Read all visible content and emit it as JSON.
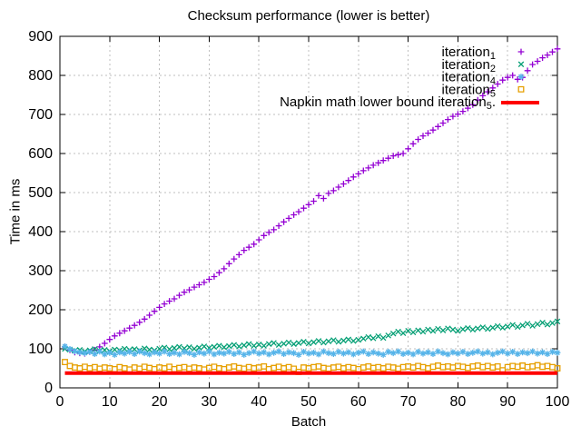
{
  "chart_data": {
    "type": "scatter",
    "title": "Checksum performance (lower is better)",
    "xlabel": "Batch",
    "ylabel": "Time in ms",
    "xlim": [
      0,
      100
    ],
    "ylim": [
      0,
      900
    ],
    "xticks": [
      0,
      10,
      20,
      30,
      40,
      50,
      60,
      70,
      80,
      90,
      100
    ],
    "yticks": [
      0,
      100,
      200,
      300,
      400,
      500,
      600,
      700,
      800,
      900
    ],
    "grid": true,
    "grid_color": "#bfbfbf",
    "legend_position": "top-right-inside",
    "series": [
      {
        "name": "iteration",
        "name_sub": "1",
        "name_suffix": "",
        "marker": "plus",
        "color": "#9400d3",
        "x_start": 1,
        "x_step": 1,
        "y": [
          105,
          97,
          91,
          89,
          88,
          92,
          97,
          105,
          114,
          124,
          133,
          140,
          146,
          153,
          160,
          168,
          176,
          186,
          196,
          206,
          215,
          222,
          228,
          237,
          245,
          251,
          258,
          264,
          270,
          278,
          285,
          295,
          305,
          318,
          330,
          341,
          352,
          360,
          368,
          379,
          390,
          398,
          405,
          415,
          425,
          434,
          443,
          451,
          460,
          469,
          478,
          492,
          485,
          498,
          505,
          514,
          522,
          531,
          540,
          548,
          556,
          563,
          570,
          576,
          582,
          588,
          594,
          597,
          600,
          612,
          625,
          636,
          645,
          652,
          660,
          669,
          678,
          687,
          695,
          701,
          708,
          716,
          725,
          737,
          748,
          758,
          768,
          778,
          788,
          795,
          800,
          790,
          795,
          812,
          828,
          836,
          845,
          852,
          860,
          868
        ]
      },
      {
        "name": "iteration",
        "name_sub": "2",
        "name_suffix": "",
        "marker": "cross",
        "color": "#009e73",
        "x_start": 1,
        "x_step": 1,
        "y": [
          100,
          98,
          95,
          97,
          93,
          96,
          99,
          95,
          97,
          94,
          98,
          96,
          100,
          97,
          99,
          96,
          101,
          98,
          96,
          100,
          103,
          99,
          102,
          105,
          101,
          104,
          100,
          103,
          106,
          102,
          105,
          108,
          104,
          107,
          110,
          106,
          109,
          112,
          108,
          111,
          108,
          112,
          115,
          110,
          113,
          116,
          112,
          115,
          118,
          114,
          117,
          120,
          116,
          119,
          122,
          118,
          121,
          124,
          120,
          123,
          126,
          130,
          127,
          132,
          128,
          134,
          139,
          144,
          140,
          146,
          142,
          147,
          144,
          149,
          146,
          151,
          147,
          152,
          149,
          146,
          150,
          153,
          149,
          152,
          155,
          151,
          154,
          158,
          154,
          157,
          161,
          156,
          160,
          164,
          159,
          163,
          167,
          162,
          166,
          170
        ]
      },
      {
        "name": "iteration",
        "name_sub": "4",
        "name_suffix": "",
        "marker": "star",
        "color": "#56b4e9",
        "x_start": 1,
        "x_step": 1,
        "y": [
          106,
          99,
          94,
          91,
          89,
          92,
          87,
          93,
          86,
          90,
          85,
          91,
          88,
          92,
          87,
          93,
          89,
          86,
          91,
          88,
          93,
          87,
          90,
          86,
          92,
          89,
          85,
          91,
          88,
          93,
          86,
          90,
          88,
          92,
          87,
          91,
          85,
          89,
          93,
          88,
          91,
          86,
          90,
          93,
          87,
          91,
          89,
          85,
          92,
          88,
          90,
          86,
          93,
          89,
          87,
          92,
          88,
          91,
          86,
          90,
          93,
          87,
          91,
          88,
          85,
          92,
          89,
          93,
          87,
          90,
          86,
          92,
          88,
          91,
          87,
          93,
          89,
          86,
          91,
          88,
          92,
          87,
          90,
          93,
          88,
          91,
          86,
          90,
          93,
          88,
          92,
          87,
          91,
          89,
          93,
          88,
          91,
          87,
          92,
          90
        ]
      },
      {
        "name": "iteration",
        "name_sub": "5",
        "name_suffix": "",
        "marker": "square",
        "color": "#e69f00",
        "x_start": 1,
        "x_step": 1,
        "y": [
          66,
          56,
          52,
          50,
          54,
          50,
          53,
          49,
          52,
          50,
          48,
          53,
          50,
          47,
          52,
          49,
          54,
          51,
          48,
          52,
          50,
          54,
          48,
          51,
          53,
          49,
          52,
          50,
          47,
          51,
          54,
          50,
          48,
          52,
          55,
          51,
          49,
          53,
          50,
          52,
          55,
          48,
          51,
          54,
          50,
          53,
          49,
          41,
          52,
          50,
          53,
          55,
          51,
          49,
          52,
          54,
          50,
          53,
          51,
          48,
          52,
          55,
          51,
          53,
          50,
          54,
          52,
          49,
          53,
          55,
          52,
          56,
          53,
          50,
          54,
          57,
          53,
          55,
          52,
          56,
          54,
          51,
          55,
          57,
          53,
          56,
          52,
          55,
          45,
          53,
          56,
          54,
          57,
          53,
          55,
          58,
          54,
          56,
          53,
          50
        ]
      },
      {
        "name": "Napkin math lower bound iteration",
        "name_sub": "5",
        "name_suffix": ".",
        "marker": "line",
        "color": "#ff0000",
        "line_width": 4,
        "x": [
          1,
          100
        ],
        "y": [
          38,
          38
        ]
      }
    ]
  }
}
